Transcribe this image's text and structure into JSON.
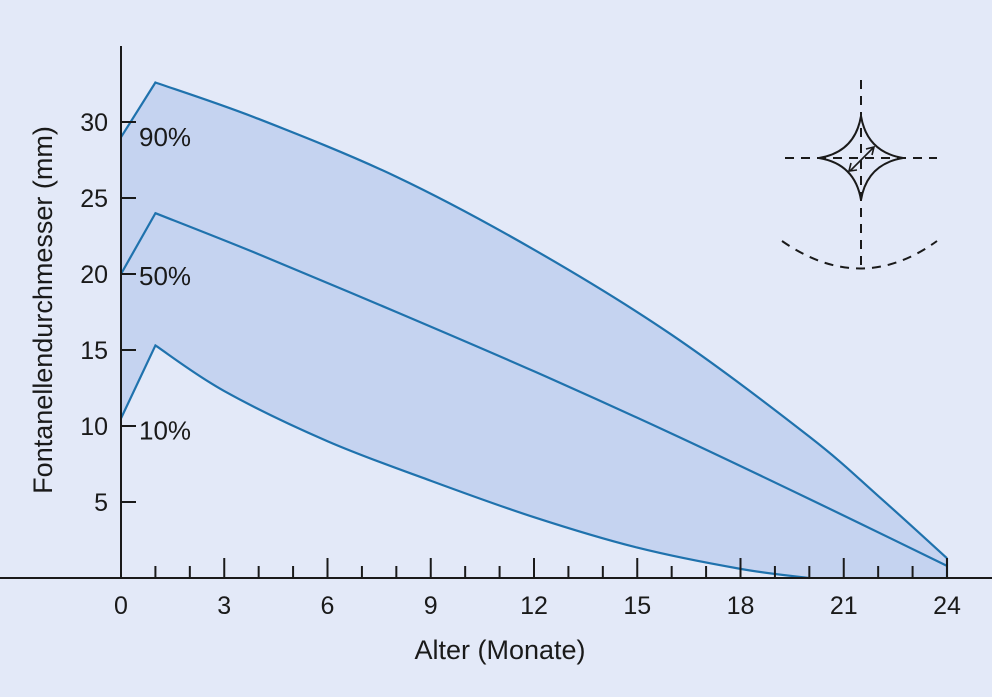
{
  "colors": {
    "background": "#e3e9f8",
    "band_fill": "#c5d3f0",
    "line": "#1f72ad",
    "axis": "#1a1a1a"
  },
  "chart_data": {
    "type": "area",
    "xlabel": "Alter (Monate)",
    "ylabel": "Fontanellendurchmesser (mm)",
    "xlim": [
      0,
      24
    ],
    "ylim": [
      0,
      35
    ],
    "xticks": [
      0,
      3,
      6,
      9,
      12,
      15,
      18,
      21,
      24
    ],
    "yticks": [
      5,
      10,
      15,
      20,
      25,
      30
    ],
    "x_minor_step": 1,
    "grid": false,
    "series": [
      {
        "name": "90%",
        "x": [
          0,
          1,
          4,
          8,
          12,
          16,
          20,
          22,
          24
        ],
        "y": [
          29,
          32.6,
          30.2,
          26.4,
          21.6,
          16.0,
          9.3,
          5.4,
          1.3
        ]
      },
      {
        "name": "50%",
        "x": [
          0,
          1,
          4,
          8,
          12,
          16,
          20,
          24
        ],
        "y": [
          20,
          24.0,
          21.3,
          17.5,
          13.6,
          9.5,
          5.2,
          0.8
        ]
      },
      {
        "name": "10%",
        "x": [
          0,
          1,
          3,
          6,
          9,
          12,
          15,
          18,
          20
        ],
        "y": [
          10.5,
          15.3,
          12.3,
          9.0,
          6.4,
          4.0,
          2.0,
          0.6,
          0
        ]
      }
    ],
    "band": {
      "upper": "90%",
      "lower": "10%",
      "closes_at_x": 24
    },
    "inset_icon": "fontanelle-diagram"
  }
}
